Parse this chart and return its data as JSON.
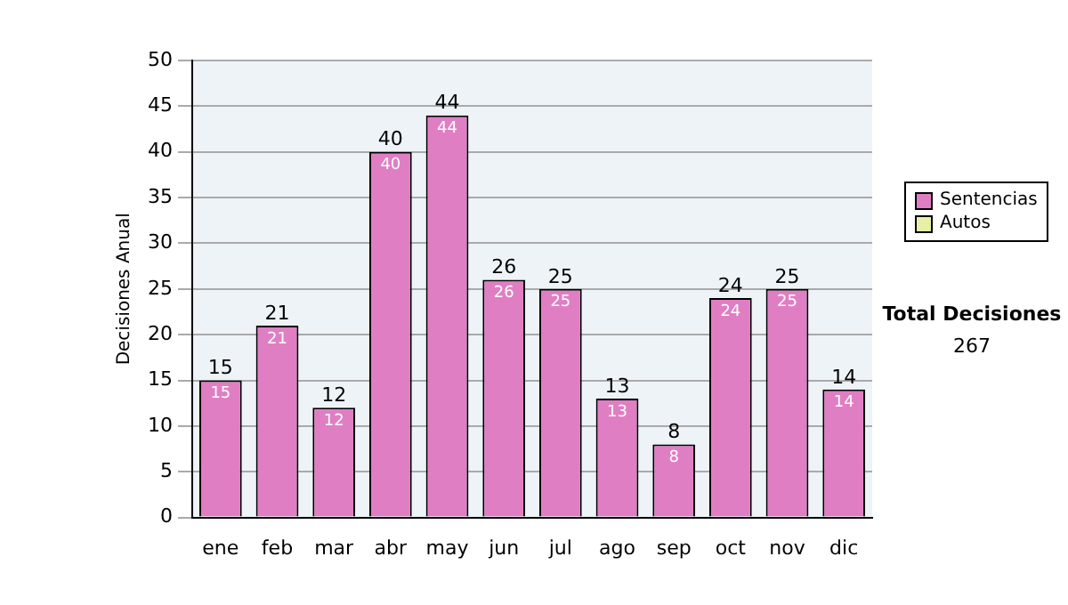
{
  "chart_data": {
    "type": "bar",
    "stacked": true,
    "ylabel": "Decisiones Anual",
    "categories": [
      "ene",
      "feb",
      "mar",
      "abr",
      "may",
      "jun",
      "jul",
      "ago",
      "sep",
      "oct",
      "nov",
      "dic"
    ],
    "series": [
      {
        "name": "Sentencias",
        "color": "#e07ec4",
        "values": [
          15,
          21,
          12,
          40,
          44,
          26,
          25,
          13,
          8,
          24,
          25,
          14
        ]
      },
      {
        "name": "Autos",
        "color": "#e8f0a8",
        "values": [
          null,
          null,
          null,
          null,
          null,
          null,
          null,
          null,
          null,
          null,
          null,
          null
        ]
      }
    ],
    "ylim": [
      0,
      50
    ],
    "yticks": [
      0,
      5,
      10,
      15,
      20,
      25,
      30,
      35,
      40,
      45,
      50
    ],
    "grid": "y",
    "legend": "right",
    "data_labels": true,
    "totals": [
      "15",
      "21",
      "12",
      "40",
      "44",
      "26",
      "25",
      "13",
      "8",
      "24",
      "25",
      "14"
    ],
    "annotations": [
      "Total Decisiones",
      "267"
    ]
  }
}
